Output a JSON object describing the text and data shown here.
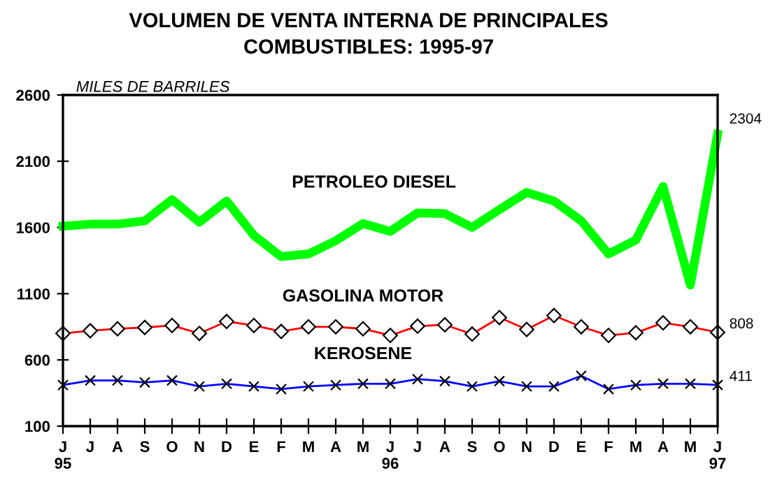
{
  "chart_data": {
    "type": "line",
    "title": "VOLUMEN DE VENTA INTERNA DE PRINCIPALES\nCOMBUSTIBLES: 1995-97",
    "ylabel": "MILES DE BARRILES",
    "categories": [
      "J\n95",
      "J",
      "A",
      "S",
      "O",
      "N",
      "D",
      "E",
      "F",
      "M",
      "A",
      "M",
      "J\n96",
      "J",
      "A",
      "S",
      "O",
      "N",
      "D",
      "E",
      "F",
      "M",
      "A",
      "M",
      "J\n97"
    ],
    "series": [
      {
        "name": "PETROLEO DIESEL",
        "color": "#00ff00",
        "marker": "none",
        "values": [
          1610,
          1625,
          1625,
          1650,
          1810,
          1640,
          1800,
          1540,
          1380,
          1400,
          1500,
          1630,
          1570,
          1710,
          1705,
          1600,
          1735,
          1865,
          1800,
          1650,
          1400,
          1505,
          1910,
          1165,
          2304
        ],
        "value_labels": [
          null,
          null,
          null,
          null,
          null,
          null,
          null,
          null,
          null,
          null,
          null,
          null,
          null,
          null,
          null,
          null,
          null,
          null,
          null,
          null,
          null,
          null,
          null,
          null,
          "2304"
        ]
      },
      {
        "name": "GASOLINA MOTOR",
        "color": "#ff0000",
        "marker": "diamond",
        "values": [
          800,
          820,
          835,
          845,
          860,
          800,
          890,
          860,
          815,
          850,
          850,
          835,
          785,
          855,
          865,
          795,
          920,
          830,
          935,
          850,
          785,
          805,
          880,
          850,
          808
        ],
        "value_labels": [
          null,
          null,
          null,
          null,
          null,
          null,
          null,
          null,
          null,
          null,
          null,
          null,
          null,
          null,
          null,
          null,
          null,
          null,
          null,
          null,
          null,
          null,
          null,
          null,
          "808"
        ]
      },
      {
        "name": "KEROSENE",
        "color": "#0000ff",
        "marker": "cross",
        "values": [
          410,
          445,
          445,
          430,
          445,
          400,
          420,
          400,
          380,
          400,
          410,
          420,
          420,
          455,
          440,
          400,
          440,
          400,
          400,
          480,
          380,
          410,
          420,
          420,
          411
        ],
        "value_labels": [
          null,
          null,
          null,
          null,
          null,
          null,
          null,
          null,
          null,
          null,
          null,
          null,
          null,
          null,
          null,
          null,
          null,
          null,
          null,
          null,
          null,
          null,
          null,
          null,
          "411"
        ]
      }
    ],
    "ylim": [
      100,
      2600
    ],
    "yticks": [
      100,
      600,
      1100,
      1600,
      2100,
      2600
    ],
    "grid": false,
    "legend": false
  }
}
